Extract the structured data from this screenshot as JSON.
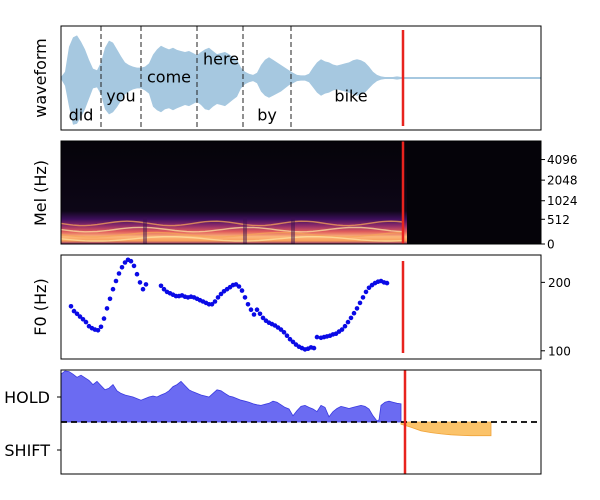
{
  "chart_data": [
    {
      "type": "area",
      "panel": "waveform",
      "ylabel": "waveform",
      "xlim": [
        0,
        2.4
      ],
      "ylim": [
        -1,
        1
      ],
      "grid": false,
      "envelope": {
        "x": [
          0,
          0.02,
          0.04,
          0.06,
          0.08,
          0.1,
          0.12,
          0.14,
          0.16,
          0.18,
          0.2,
          0.22,
          0.24,
          0.26,
          0.28,
          0.3,
          0.32,
          0.34,
          0.36,
          0.38,
          0.4,
          0.42,
          0.44,
          0.46,
          0.48,
          0.5,
          0.52,
          0.54,
          0.56,
          0.58,
          0.6,
          0.62,
          0.64,
          0.66,
          0.68,
          0.7,
          0.72,
          0.74,
          0.76,
          0.78,
          0.8,
          0.82,
          0.84,
          0.86,
          0.88,
          0.9,
          0.92,
          0.94,
          0.96,
          0.98,
          1.0,
          1.02,
          1.04,
          1.06,
          1.08,
          1.1,
          1.12,
          1.14,
          1.16,
          1.18,
          1.2,
          1.22,
          1.24,
          1.26,
          1.28,
          1.3,
          1.32,
          1.34,
          1.36,
          1.38,
          1.4,
          1.42,
          1.44,
          1.46,
          1.48,
          1.5,
          1.52,
          1.54,
          1.56,
          1.58,
          1.6,
          1.62,
          1.64,
          1.66,
          1.68,
          1.7,
          1.72,
          1.74,
          1.76,
          1.78,
          1.8,
          1.82,
          1.84,
          1.86,
          1.88,
          1.9,
          1.92,
          1.94,
          1.96,
          2.0,
          2.4
        ],
        "upper": [
          0.02,
          0.12,
          0.6,
          0.78,
          0.82,
          0.7,
          0.55,
          0.35,
          0.18,
          0.15,
          0.3,
          0.58,
          0.72,
          0.68,
          0.55,
          0.42,
          0.3,
          0.25,
          0.22,
          0.2,
          0.2,
          0.22,
          0.28,
          0.45,
          0.55,
          0.62,
          0.58,
          0.55,
          0.58,
          0.54,
          0.52,
          0.5,
          0.52,
          0.48,
          0.44,
          0.5,
          0.55,
          0.58,
          0.52,
          0.46,
          0.48,
          0.5,
          0.46,
          0.4,
          0.35,
          0.2,
          0.12,
          0.08,
          0.06,
          0.1,
          0.25,
          0.35,
          0.4,
          0.35,
          0.3,
          0.25,
          0.2,
          0.15,
          0.1,
          0.06,
          0.05,
          0.05,
          0.08,
          0.2,
          0.3,
          0.36,
          0.32,
          0.3,
          0.26,
          0.24,
          0.26,
          0.28,
          0.3,
          0.34,
          0.36,
          0.34,
          0.3,
          0.22,
          0.12,
          0.06,
          0.03,
          0.02,
          0.02,
          0.02,
          0.03,
          0.02,
          0.02,
          0.01,
          0.01,
          0.01,
          0.01,
          0.01,
          0.01,
          0.01,
          0.01,
          0.01,
          0.01,
          0.01,
          0.01,
          0.01,
          0.01
        ],
        "lower": [
          -0.02,
          -0.15,
          -0.55,
          -0.9,
          -0.88,
          -0.75,
          -0.6,
          -0.4,
          -0.2,
          -0.18,
          -0.32,
          -0.6,
          -0.7,
          -0.66,
          -0.56,
          -0.44,
          -0.32,
          -0.26,
          -0.22,
          -0.2,
          -0.2,
          -0.24,
          -0.3,
          -0.55,
          -0.62,
          -0.66,
          -0.6,
          -0.58,
          -0.62,
          -0.58,
          -0.55,
          -0.52,
          -0.54,
          -0.5,
          -0.46,
          -0.52,
          -0.6,
          -0.62,
          -0.55,
          -0.5,
          -0.52,
          -0.54,
          -0.48,
          -0.42,
          -0.36,
          -0.2,
          -0.12,
          -0.08,
          -0.06,
          -0.1,
          -0.26,
          -0.34,
          -0.38,
          -0.34,
          -0.3,
          -0.26,
          -0.2,
          -0.14,
          -0.1,
          -0.06,
          -0.05,
          -0.05,
          -0.08,
          -0.18,
          -0.28,
          -0.34,
          -0.3,
          -0.28,
          -0.24,
          -0.22,
          -0.24,
          -0.26,
          -0.28,
          -0.32,
          -0.34,
          -0.32,
          -0.28,
          -0.2,
          -0.12,
          -0.06,
          -0.03,
          -0.02,
          -0.02,
          -0.02,
          -0.03,
          -0.02,
          -0.02,
          -0.01,
          -0.01,
          -0.01,
          -0.01,
          -0.01,
          -0.01,
          -0.01,
          -0.01,
          -0.01,
          -0.01,
          -0.01,
          -0.01,
          -0.01,
          -0.01
        ]
      },
      "word_boundaries": [
        0.2,
        0.4,
        0.68,
        0.91,
        1.15
      ],
      "words": [
        {
          "text": "did",
          "x": 0.1,
          "y": -0.72
        },
        {
          "text": "you",
          "x": 0.3,
          "y": -0.36
        },
        {
          "text": "come",
          "x": 0.54,
          "y": 0.01
        },
        {
          "text": "here",
          "x": 0.8,
          "y": 0.36
        },
        {
          "text": "by",
          "x": 1.03,
          "y": -0.72
        },
        {
          "text": "bike",
          "x": 1.45,
          "y": -0.36
        }
      ],
      "marker_x": 1.71,
      "colors": {
        "fill": "#a6c8e0",
        "boundary": "#222222",
        "marker": "#e8231e"
      }
    },
    {
      "type": "heatmap",
      "panel": "mel",
      "ylabel": "Mel (Hz)",
      "xlim": [
        0,
        2.4
      ],
      "yticks": [
        "0",
        "512",
        "1024",
        "2048",
        "4096"
      ],
      "active_until": 1.73,
      "marker_x": 1.71,
      "colors": {
        "background": "#050309",
        "marker": "#e8231e"
      }
    },
    {
      "type": "scatter",
      "panel": "f0",
      "ylabel": "F0 (Hz)",
      "xlim": [
        0,
        2.4
      ],
      "ylim": [
        88,
        240
      ],
      "yticks": [
        100,
        200
      ],
      "series": [
        {
          "x": [
            0.05,
            0.065,
            0.08,
            0.095,
            0.11,
            0.125,
            0.14,
            0.155,
            0.17,
            0.185,
            0.2,
            0.215,
            0.23,
            0.245,
            0.26,
            0.275,
            0.29,
            0.305,
            0.32,
            0.335,
            0.35,
            0.365,
            0.38,
            0.395,
            0.41,
            0.425,
            0.5,
            0.515,
            0.53,
            0.545,
            0.56,
            0.575,
            0.59,
            0.605,
            0.62,
            0.635,
            0.65,
            0.665,
            0.68,
            0.695,
            0.71,
            0.725,
            0.74,
            0.755,
            0.77,
            0.785,
            0.8,
            0.815,
            0.83,
            0.845,
            0.86,
            0.875,
            0.89,
            0.905,
            0.92,
            0.935,
            0.95,
            0.965,
            0.98,
            0.995,
            1.01,
            1.025,
            1.04,
            1.055,
            1.07,
            1.085,
            1.1,
            1.115,
            1.13,
            1.145,
            1.16,
            1.175,
            1.19,
            1.205,
            1.22,
            1.235,
            1.25,
            1.265,
            1.28,
            1.3,
            1.315,
            1.33,
            1.345,
            1.36,
            1.375,
            1.39,
            1.405,
            1.42,
            1.435,
            1.45,
            1.465,
            1.48,
            1.495,
            1.51,
            1.525,
            1.54,
            1.555,
            1.57,
            1.585,
            1.6,
            1.615,
            1.63
          ],
          "values": [
            165,
            158,
            154,
            150,
            146,
            142,
            136,
            133,
            131,
            130,
            135,
            147,
            162,
            176,
            190,
            202,
            213,
            222,
            229,
            233,
            231,
            224,
            212,
            200,
            190,
            197,
            195,
            190,
            186,
            184,
            182,
            180,
            180,
            181,
            179,
            178,
            179,
            178,
            176,
            174,
            172,
            170,
            168,
            168,
            172,
            178,
            183,
            187,
            190,
            193,
            196,
            197,
            194,
            188,
            178,
            168,
            160,
            153,
            160,
            154,
            148,
            144,
            141,
            139,
            137,
            134,
            131,
            127,
            122,
            117,
            113,
            109,
            106,
            104,
            102,
            103,
            105,
            104,
            120,
            119,
            120,
            121,
            122,
            124,
            125,
            128,
            131,
            136,
            142,
            148,
            155,
            162,
            170,
            178,
            186,
            192,
            196,
            199,
            201,
            202,
            200,
            199
          ],
          "color": "#0a0ae6"
        }
      ],
      "marker_x": 1.71,
      "colors": {
        "marker": "#e8231e"
      }
    },
    {
      "type": "area",
      "panel": "turn-taking",
      "ylabel": "",
      "xlim": [
        0,
        2.4
      ],
      "ylim": [
        -1,
        1
      ],
      "yticks": [
        "HOLD",
        "SHIFT"
      ],
      "threshold": 0,
      "hold": {
        "x": [
          0,
          0.02,
          0.04,
          0.06,
          0.08,
          0.1,
          0.12,
          0.14,
          0.16,
          0.18,
          0.2,
          0.22,
          0.24,
          0.26,
          0.28,
          0.3,
          0.32,
          0.34,
          0.36,
          0.38,
          0.4,
          0.42,
          0.44,
          0.46,
          0.48,
          0.5,
          0.52,
          0.54,
          0.56,
          0.58,
          0.6,
          0.62,
          0.64,
          0.66,
          0.68,
          0.7,
          0.72,
          0.74,
          0.76,
          0.78,
          0.8,
          0.82,
          0.84,
          0.86,
          0.88,
          0.9,
          0.92,
          0.94,
          0.96,
          0.98,
          1.0,
          1.02,
          1.04,
          1.06,
          1.08,
          1.1,
          1.12,
          1.14,
          1.16,
          1.18,
          1.2,
          1.22,
          1.24,
          1.26,
          1.28,
          1.3,
          1.32,
          1.34,
          1.36,
          1.38,
          1.4,
          1.42,
          1.44,
          1.46,
          1.48,
          1.5,
          1.52,
          1.54,
          1.56,
          1.58,
          1.59,
          1.6,
          1.62,
          1.64,
          1.66,
          1.68,
          1.7
        ],
        "values": [
          0.92,
          0.98,
          0.97,
          0.92,
          0.86,
          0.9,
          0.85,
          0.8,
          0.72,
          0.78,
          0.7,
          0.62,
          0.65,
          0.72,
          0.6,
          0.55,
          0.52,
          0.5,
          0.48,
          0.45,
          0.42,
          0.45,
          0.48,
          0.5,
          0.48,
          0.52,
          0.55,
          0.6,
          0.68,
          0.72,
          0.78,
          0.7,
          0.62,
          0.58,
          0.55,
          0.52,
          0.5,
          0.48,
          0.55,
          0.62,
          0.6,
          0.55,
          0.5,
          0.48,
          0.45,
          0.42,
          0.4,
          0.38,
          0.35,
          0.33,
          0.32,
          0.34,
          0.36,
          0.4,
          0.38,
          0.33,
          0.28,
          0.25,
          0.12,
          0.22,
          0.3,
          0.32,
          0.28,
          0.25,
          0.2,
          0.32,
          0.28,
          0.1,
          0.2,
          0.26,
          0.3,
          0.28,
          0.26,
          0.28,
          0.3,
          0.32,
          0.3,
          0.25,
          0.12,
          0.02,
          0.04,
          0.32,
          0.38,
          0.4,
          0.38,
          0.36,
          0.35
        ]
      },
      "shift": {
        "x": [
          1.7,
          1.75,
          1.8,
          1.85,
          1.9,
          1.95,
          2.0,
          2.05,
          2.1,
          2.15
        ],
        "values": [
          0.05,
          0.12,
          0.2,
          0.24,
          0.27,
          0.29,
          0.3,
          0.31,
          0.31,
          0.31
        ]
      },
      "marker_x": 1.72,
      "colors": {
        "hold": "#6b6bf2",
        "hold_edge": "#3a3ae0",
        "shift": "#fbc36a",
        "shift_edge": "#f0a43a",
        "threshold": "#000000",
        "marker": "#e8231e"
      }
    }
  ]
}
